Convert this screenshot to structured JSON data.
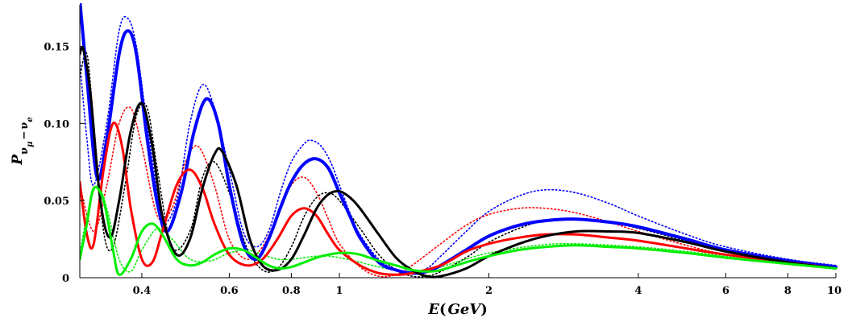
{
  "chart_data": {
    "type": "line",
    "xscale": "log",
    "xlim": [
      0.3,
      10
    ],
    "ylim": [
      0,
      0.18
    ],
    "xlabel": {
      "prefix": "E",
      "open": "(",
      "unit": "GeV",
      "close": ")"
    },
    "ylabel": {
      "main": "P",
      "sub1": "ν",
      "sub1b": "μ",
      "dash": "−",
      "sub2": "ν",
      "sub2b": "e"
    },
    "xticks": [
      0.4,
      0.6,
      0.8,
      1,
      2,
      4,
      6,
      8,
      10
    ],
    "xtick_labels": [
      "0.4",
      "0.6",
      "0.8",
      "1",
      "2",
      "4",
      "6",
      "8",
      "10"
    ],
    "yticks": [
      0,
      0.05,
      0.1,
      0.15
    ],
    "ytick_labels": [
      "0",
      "0.05",
      "0.10",
      "0.15"
    ],
    "series": [
      {
        "name": "blue-solid",
        "color": "#0000ff",
        "style": "solid",
        "width": 4,
        "x": [
          0.3,
          0.31,
          0.325,
          0.34,
          0.36,
          0.375,
          0.39,
          0.41,
          0.43,
          0.45,
          0.48,
          0.51,
          0.54,
          0.57,
          0.6,
          0.64,
          0.68,
          0.72,
          0.76,
          0.8,
          0.85,
          0.9,
          0.95,
          1.0,
          1.05,
          1.1,
          1.2,
          1.3,
          1.4,
          1.5,
          1.6,
          1.8,
          2.0,
          2.3,
          2.6,
          3.0,
          3.5,
          4.0,
          5.0,
          6.0,
          8.0,
          10.0
        ],
        "y": [
          0.18,
          0.13,
          0.065,
          0.09,
          0.145,
          0.16,
          0.145,
          0.09,
          0.048,
          0.03,
          0.055,
          0.095,
          0.116,
          0.1,
          0.06,
          0.022,
          0.012,
          0.025,
          0.045,
          0.062,
          0.074,
          0.077,
          0.071,
          0.055,
          0.04,
          0.026,
          0.01,
          0.005,
          0.003,
          0.004,
          0.008,
          0.018,
          0.027,
          0.034,
          0.037,
          0.038,
          0.036,
          0.033,
          0.025,
          0.018,
          0.011,
          0.007
        ]
      },
      {
        "name": "red-solid",
        "color": "#ff0000",
        "style": "solid",
        "width": 3,
        "x": [
          0.3,
          0.31,
          0.32,
          0.335,
          0.35,
          0.365,
          0.38,
          0.4,
          0.42,
          0.44,
          0.47,
          0.5,
          0.53,
          0.56,
          0.6,
          0.65,
          0.7,
          0.75,
          0.8,
          0.85,
          0.9,
          0.95,
          1.0,
          1.1,
          1.2,
          1.3,
          1.4,
          1.6,
          1.8,
          2.0,
          2.3,
          2.6,
          3.0,
          3.5,
          4.0,
          5.0,
          6.0,
          8.0,
          10.0
        ],
        "y": [
          0.062,
          0.028,
          0.022,
          0.07,
          0.1,
          0.085,
          0.045,
          0.012,
          0.01,
          0.03,
          0.06,
          0.07,
          0.058,
          0.035,
          0.015,
          0.008,
          0.012,
          0.025,
          0.04,
          0.045,
          0.04,
          0.028,
          0.018,
          0.008,
          0.003,
          0.002,
          0.003,
          0.008,
          0.017,
          0.022,
          0.026,
          0.028,
          0.028,
          0.026,
          0.024,
          0.019,
          0.015,
          0.01,
          0.006
        ]
      },
      {
        "name": "black-solid",
        "color": "#000000",
        "style": "solid",
        "width": 3,
        "x": [
          0.3,
          0.305,
          0.315,
          0.33,
          0.345,
          0.36,
          0.38,
          0.4,
          0.42,
          0.44,
          0.47,
          0.5,
          0.53,
          0.56,
          0.58,
          0.62,
          0.66,
          0.7,
          0.75,
          0.8,
          0.85,
          0.9,
          0.95,
          1.0,
          1.05,
          1.1,
          1.2,
          1.3,
          1.4,
          1.5,
          1.6,
          1.8,
          2.0,
          2.3,
          2.6,
          3.0,
          3.5,
          4.0,
          5.0,
          6.0,
          8.0,
          10.0
        ],
        "y": [
          0.145,
          0.148,
          0.12,
          0.05,
          0.026,
          0.05,
          0.095,
          0.113,
          0.085,
          0.04,
          0.015,
          0.025,
          0.058,
          0.08,
          0.082,
          0.06,
          0.025,
          0.008,
          0.005,
          0.012,
          0.028,
          0.045,
          0.054,
          0.056,
          0.052,
          0.045,
          0.028,
          0.013,
          0.005,
          0.001,
          0.001,
          0.006,
          0.014,
          0.022,
          0.027,
          0.03,
          0.03,
          0.029,
          0.023,
          0.017,
          0.01,
          0.006
        ]
      },
      {
        "name": "green-solid",
        "color": "#00ee00",
        "style": "solid",
        "width": 3,
        "x": [
          0.3,
          0.31,
          0.32,
          0.335,
          0.35,
          0.36,
          0.38,
          0.4,
          0.42,
          0.44,
          0.47,
          0.5,
          0.53,
          0.56,
          0.6,
          0.64,
          0.68,
          0.72,
          0.76,
          0.8,
          0.85,
          0.9,
          0.95,
          1.0,
          1.05,
          1.1,
          1.2,
          1.3,
          1.4,
          1.5,
          1.6,
          1.8,
          2.0,
          2.3,
          2.6,
          3.0,
          3.5,
          4.0,
          5.0,
          6.0,
          8.0,
          10.0
        ],
        "y": [
          0.012,
          0.035,
          0.058,
          0.05,
          0.018,
          0.002,
          0.012,
          0.03,
          0.035,
          0.028,
          0.012,
          0.008,
          0.01,
          0.015,
          0.019,
          0.018,
          0.013,
          0.008,
          0.006,
          0.007,
          0.01,
          0.013,
          0.015,
          0.016,
          0.016,
          0.015,
          0.011,
          0.008,
          0.005,
          0.004,
          0.005,
          0.01,
          0.014,
          0.018,
          0.02,
          0.021,
          0.02,
          0.019,
          0.016,
          0.013,
          0.009,
          0.006
        ]
      },
      {
        "name": "blue-dotted",
        "color": "#0000ff",
        "style": "dotted",
        "width": 1.6,
        "x": [
          0.3,
          0.31,
          0.32,
          0.34,
          0.36,
          0.375,
          0.39,
          0.41,
          0.44,
          0.47,
          0.5,
          0.53,
          0.56,
          0.6,
          0.64,
          0.68,
          0.72,
          0.76,
          0.8,
          0.85,
          0.88,
          0.92,
          0.96,
          1.0,
          1.05,
          1.1,
          1.2,
          1.3,
          1.4,
          1.5,
          1.6,
          1.8,
          2.0,
          2.3,
          2.6,
          3.0,
          3.5,
          4.0,
          5.0,
          6.0,
          8.0,
          10.0
        ],
        "y": [
          0.14,
          0.09,
          0.06,
          0.1,
          0.16,
          0.168,
          0.15,
          0.1,
          0.04,
          0.05,
          0.1,
          0.125,
          0.11,
          0.07,
          0.03,
          0.02,
          0.03,
          0.055,
          0.075,
          0.087,
          0.089,
          0.085,
          0.075,
          0.06,
          0.042,
          0.028,
          0.012,
          0.005,
          0.003,
          0.006,
          0.014,
          0.03,
          0.043,
          0.053,
          0.057,
          0.055,
          0.048,
          0.04,
          0.028,
          0.02,
          0.012,
          0.008
        ]
      },
      {
        "name": "red-dotted",
        "color": "#ff0000",
        "style": "dotted",
        "width": 1.6,
        "x": [
          0.3,
          0.32,
          0.34,
          0.36,
          0.38,
          0.4,
          0.43,
          0.46,
          0.49,
          0.52,
          0.56,
          0.6,
          0.65,
          0.7,
          0.75,
          0.8,
          0.85,
          0.9,
          0.95,
          1.0,
          1.1,
          1.2,
          1.3,
          1.4,
          1.6,
          1.8,
          2.0,
          2.3,
          2.6,
          3.0,
          3.5,
          4.0,
          5.0,
          6.0,
          8.0,
          10.0
        ],
        "y": [
          0.06,
          0.03,
          0.06,
          0.1,
          0.11,
          0.085,
          0.04,
          0.045,
          0.075,
          0.085,
          0.06,
          0.025,
          0.012,
          0.02,
          0.04,
          0.06,
          0.065,
          0.055,
          0.038,
          0.022,
          0.007,
          0.001,
          0.002,
          0.008,
          0.022,
          0.034,
          0.041,
          0.045,
          0.045,
          0.042,
          0.036,
          0.03,
          0.021,
          0.015,
          0.009,
          0.006
        ]
      },
      {
        "name": "black-dotted",
        "color": "#000000",
        "style": "dotted",
        "width": 1.6,
        "x": [
          0.3,
          0.31,
          0.32,
          0.335,
          0.35,
          0.37,
          0.39,
          0.41,
          0.43,
          0.46,
          0.5,
          0.53,
          0.56,
          0.6,
          0.65,
          0.7,
          0.75,
          0.8,
          0.85,
          0.9,
          0.95,
          1.0,
          1.1,
          1.2,
          1.3,
          1.4,
          1.5,
          1.6,
          1.8,
          2.0,
          2.3,
          2.6,
          3.0,
          3.5,
          4.0,
          5.0,
          6.0,
          8.0,
          10.0
        ],
        "y": [
          0.13,
          0.145,
          0.1,
          0.03,
          0.02,
          0.06,
          0.105,
          0.11,
          0.07,
          0.02,
          0.03,
          0.065,
          0.075,
          0.055,
          0.02,
          0.005,
          0.006,
          0.02,
          0.04,
          0.052,
          0.055,
          0.05,
          0.032,
          0.015,
          0.005,
          0.001,
          0.001,
          0.004,
          0.013,
          0.023,
          0.032,
          0.037,
          0.038,
          0.036,
          0.032,
          0.024,
          0.018,
          0.011,
          0.007
        ]
      },
      {
        "name": "green-dotted",
        "color": "#00ee00",
        "style": "dotted",
        "width": 1.6,
        "x": [
          0.3,
          0.31,
          0.325,
          0.34,
          0.36,
          0.38,
          0.4,
          0.43,
          0.46,
          0.5,
          0.55,
          0.6,
          0.65,
          0.7,
          0.75,
          0.8,
          0.85,
          0.9,
          0.95,
          1.0,
          1.1,
          1.2,
          1.3,
          1.4,
          1.5,
          1.6,
          1.8,
          2.0,
          2.5,
          3.0,
          4.0,
          5.0,
          6.0,
          8.0,
          10.0
        ],
        "y": [
          0.015,
          0.04,
          0.06,
          0.045,
          0.012,
          0.004,
          0.018,
          0.032,
          0.025,
          0.012,
          0.011,
          0.016,
          0.018,
          0.015,
          0.012,
          0.012,
          0.013,
          0.014,
          0.014,
          0.013,
          0.01,
          0.007,
          0.005,
          0.004,
          0.005,
          0.007,
          0.012,
          0.016,
          0.021,
          0.022,
          0.02,
          0.017,
          0.014,
          0.01,
          0.006
        ]
      }
    ]
  }
}
